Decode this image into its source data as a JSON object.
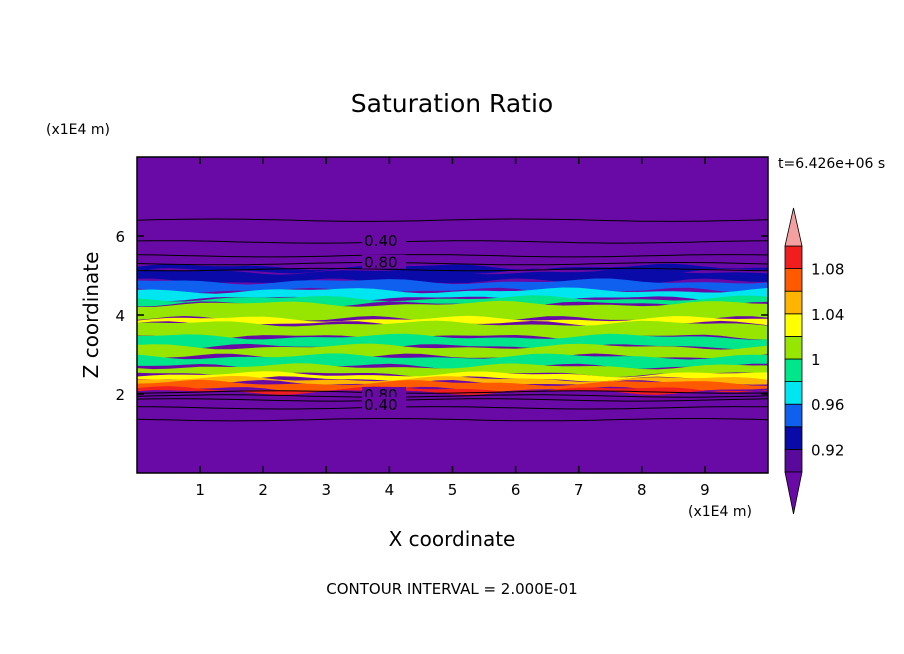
{
  "chart_data": {
    "type": "heatmap",
    "title": "Saturation Ratio",
    "xlabel": "X coordinate",
    "ylabel": "Z coordinate",
    "x_scale_label": "(x1E4 m)",
    "y_scale_label": "(x1E4 m)",
    "time_label": "t=6.426e+06 s",
    "footer": "CONTOUR INTERVAL = 2.000E-01",
    "xlim": [
      0,
      10
    ],
    "ylim": [
      0,
      8
    ],
    "x_ticks": [
      1,
      2,
      3,
      4,
      5,
      6,
      7,
      8,
      9
    ],
    "y_ticks": [
      2,
      4,
      6
    ],
    "contour_labels": [
      {
        "text": "0.40",
        "x": 3.6,
        "z": 5.85
      },
      {
        "text": "0.80",
        "x": 3.6,
        "z": 5.3
      },
      {
        "text": "0.80",
        "x": 3.6,
        "z": 1.95
      },
      {
        "text": "0.40",
        "x": 3.6,
        "z": 1.7
      }
    ],
    "contour_lines_z": [
      6.4,
      5.85,
      5.5,
      5.3,
      5.15,
      2.05,
      1.95,
      1.85,
      1.65,
      1.35
    ],
    "colorbar": {
      "levels": [
        0.9,
        0.92,
        0.94,
        0.96,
        0.98,
        1.0,
        1.02,
        1.04,
        1.06,
        1.08,
        1.1
      ],
      "tick_labels": [
        "0.92",
        "0.96",
        "1",
        "1.04",
        "1.08"
      ],
      "tick_values": [
        0.92,
        0.96,
        1.0,
        1.04,
        1.08
      ],
      "colors": [
        "#5a0a9a",
        "#0a0aa8",
        "#1060f0",
        "#00e6f0",
        "#00e68a",
        "#96e600",
        "#ffff00",
        "#ffb400",
        "#ff5a00",
        "#f01e1e"
      ],
      "under_color": "#6a0aa6",
      "over_color": "#f4a0a0"
    },
    "background_color": "#6a0aa6",
    "bands": [
      {
        "z0": 5.12,
        "z1": 5.22,
        "color": "#0a0aa8"
      },
      {
        "z0": 4.85,
        "z1": 5.1,
        "color": "#0a0aa8"
      },
      {
        "z0": 4.62,
        "z1": 4.85,
        "color": "#1060f0"
      },
      {
        "z0": 4.42,
        "z1": 4.62,
        "color": "#00e6f0"
      },
      {
        "z0": 4.28,
        "z1": 4.42,
        "color": "#00e68a"
      },
      {
        "z0": 3.9,
        "z1": 4.28,
        "color": "#96e600"
      },
      {
        "z0": 3.78,
        "z1": 3.9,
        "color": "#ffff00"
      },
      {
        "z0": 3.45,
        "z1": 3.78,
        "color": "#96e600"
      },
      {
        "z0": 3.2,
        "z1": 3.45,
        "color": "#00e68a"
      },
      {
        "z0": 2.95,
        "z1": 3.2,
        "color": "#96e600"
      },
      {
        "z0": 2.7,
        "z1": 2.95,
        "color": "#00e68a"
      },
      {
        "z0": 2.5,
        "z1": 2.7,
        "color": "#96e600"
      },
      {
        "z0": 2.38,
        "z1": 2.5,
        "color": "#ffff00"
      },
      {
        "z0": 2.28,
        "z1": 2.38,
        "color": "#ffb400"
      },
      {
        "z0": 2.12,
        "z1": 2.28,
        "color": "#ff5a00"
      },
      {
        "z0": 2.05,
        "z1": 2.12,
        "color": "#f01e1e"
      }
    ]
  }
}
